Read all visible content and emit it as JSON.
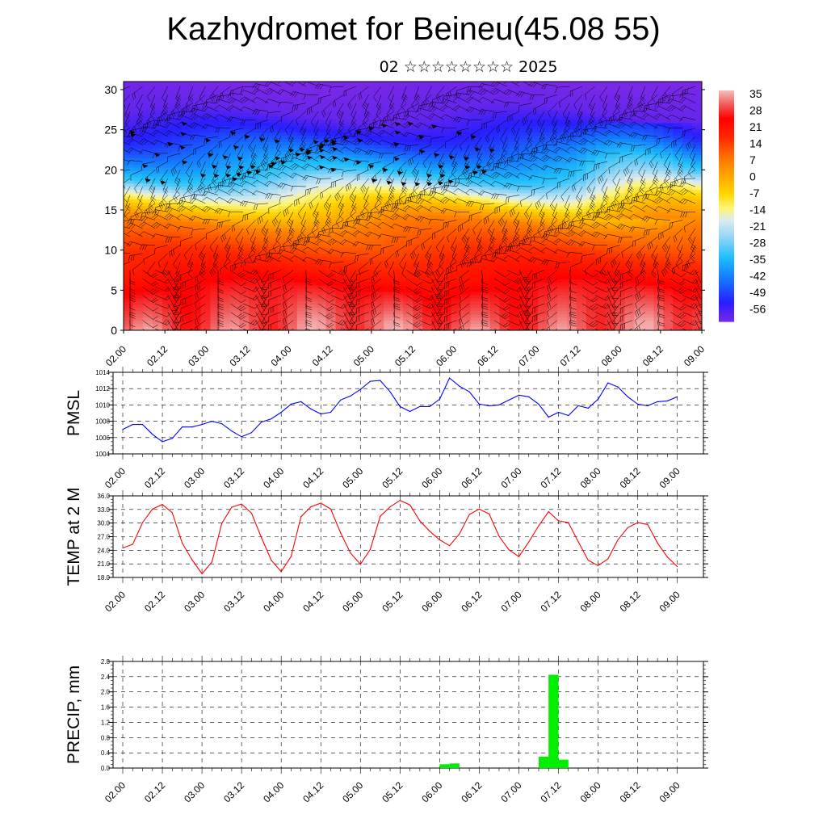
{
  "header": {
    "title": "Kazhydromet for Beineu(45.08 55)",
    "subtitle": "02 ☆☆☆☆☆☆☆☆ 2025"
  },
  "time_ticks": [
    "02.00",
    "02.12",
    "03.00",
    "03.12",
    "04.00",
    "04.12",
    "05.00",
    "05.12",
    "06.00",
    "06.12",
    "07.00",
    "07.12",
    "08.00",
    "08.12",
    "09.00"
  ],
  "chart_data": [
    {
      "type": "heatmap",
      "name": "temperature-wind-cross-section",
      "x_ticks": [
        "02.00",
        "02.12",
        "03.00",
        "03.12",
        "04.00",
        "04.12",
        "05.00",
        "05.12",
        "06.00",
        "06.12",
        "07.00",
        "07.12",
        "08.00",
        "08.12",
        "09.00"
      ],
      "y_ticks": [
        0,
        5,
        10,
        15,
        20,
        25,
        30
      ],
      "ylim": [
        0,
        31
      ],
      "colorbar": {
        "labels": [
          "35",
          "28",
          "21",
          "14",
          "7",
          "0",
          "-7",
          "-14",
          "-21",
          "-28",
          "-35",
          "-42",
          "-49",
          "-56"
        ],
        "range": [
          -60,
          38
        ]
      },
      "profile": [
        [
          0,
          33
        ],
        [
          5,
          27
        ],
        [
          9,
          18
        ],
        [
          13,
          8
        ],
        [
          15.5,
          -5
        ],
        [
          17,
          -15
        ],
        [
          19,
          -30
        ],
        [
          21.5,
          -40
        ],
        [
          24,
          -50
        ],
        [
          27,
          -58
        ],
        [
          31,
          -60
        ]
      ],
      "wind_barbs": true
    },
    {
      "type": "line",
      "ylabel": "PMSL",
      "ylim": [
        1004,
        1014
      ],
      "y_ticks": [
        "1004",
        "1006",
        "1008",
        "1010",
        "1012",
        "1014"
      ],
      "x": [
        0,
        3,
        6,
        9,
        12,
        15,
        18,
        21,
        24,
        27,
        30,
        33,
        36,
        39,
        42,
        45,
        48,
        51,
        54,
        57,
        60,
        63,
        66,
        69,
        72,
        75,
        78,
        81,
        84,
        87,
        90,
        93,
        96,
        99,
        102,
        105,
        108,
        111,
        114,
        117,
        120,
        123,
        126,
        129,
        132,
        135,
        138,
        141,
        144,
        147,
        150,
        153,
        156,
        159,
        162,
        165,
        168
      ],
      "series": [
        {
          "color": "#0000ff",
          "values": [
            1007.0,
            1007.6,
            1007.6,
            1006.4,
            1005.5,
            1005.9,
            1007.3,
            1007.3,
            1007.6,
            1008.0,
            1007.7,
            1006.8,
            1006.1,
            1006.6,
            1007.9,
            1008.3,
            1009.1,
            1010.1,
            1010.4,
            1009.5,
            1008.9,
            1009.1,
            1010.6,
            1011.1,
            1011.9,
            1012.9,
            1013.0,
            1011.6,
            1009.8,
            1009.2,
            1009.8,
            1009.8,
            1010.7,
            1013.3,
            1012.3,
            1011.6,
            1010.1,
            1009.9,
            1010.0,
            1010.6,
            1011.2,
            1011.0,
            1010.1,
            1008.5,
            1009.1,
            1008.7,
            1009.9,
            1009.6,
            1010.7,
            1012.7,
            1012.2,
            1011.0,
            1010.1,
            1009.9,
            1010.4,
            1010.5,
            1011.0
          ]
        }
      ]
    },
    {
      "type": "line",
      "ylabel": "TEMP at 2 M",
      "ylim": [
        18,
        36
      ],
      "y_ticks": [
        "18.0",
        "21.0",
        "24.0",
        "27.0",
        "30.0",
        "33.0",
        "36.0"
      ],
      "x": [
        0,
        3,
        6,
        9,
        12,
        15,
        18,
        21,
        24,
        27,
        30,
        33,
        36,
        39,
        42,
        45,
        48,
        51,
        54,
        57,
        60,
        63,
        66,
        69,
        72,
        75,
        78,
        81,
        84,
        87,
        90,
        93,
        96,
        99,
        102,
        105,
        108,
        111,
        114,
        117,
        120,
        123,
        126,
        129,
        132,
        135,
        138,
        141,
        144,
        147,
        150,
        153,
        156,
        159,
        162,
        165,
        168
      ],
      "series": [
        {
          "color": "#ff0000",
          "values": [
            24.5,
            25.3,
            30.1,
            33.1,
            34.1,
            32.3,
            25.6,
            21.9,
            18.8,
            21.4,
            29.9,
            33.5,
            34.2,
            32.2,
            26.8,
            21.8,
            19.3,
            22.6,
            31.4,
            33.6,
            34.4,
            33.1,
            27.8,
            23.4,
            20.9,
            24.2,
            31.5,
            33.6,
            35.0,
            34.0,
            30.5,
            28.2,
            26.3,
            25.0,
            27.6,
            31.9,
            33.1,
            32.0,
            27.1,
            24.1,
            22.6,
            25.8,
            29.4,
            32.5,
            30.5,
            30.1,
            25.9,
            21.8,
            20.6,
            22.1,
            26.3,
            29.0,
            30.1,
            29.7,
            25.6,
            22.5,
            20.4
          ]
        }
      ]
    },
    {
      "type": "bar",
      "ylabel": "PRECIP, mm",
      "ylim": [
        0,
        2.8
      ],
      "y_ticks": [
        "0.0",
        "0.4",
        "0.8",
        "1.2",
        "1.6",
        "2.0",
        "2.4",
        "2.8"
      ],
      "bar_width_hours": 3,
      "series": [
        {
          "color": "#00ee00",
          "bars": [
            {
              "start": 96,
              "end": 99,
              "value": 0.1
            },
            {
              "start": 99,
              "end": 102,
              "value": 0.12
            },
            {
              "start": 126,
              "end": 129,
              "value": 0.3
            },
            {
              "start": 129,
              "end": 132,
              "value": 2.45
            },
            {
              "start": 132,
              "end": 135,
              "value": 0.22
            }
          ]
        }
      ]
    }
  ]
}
